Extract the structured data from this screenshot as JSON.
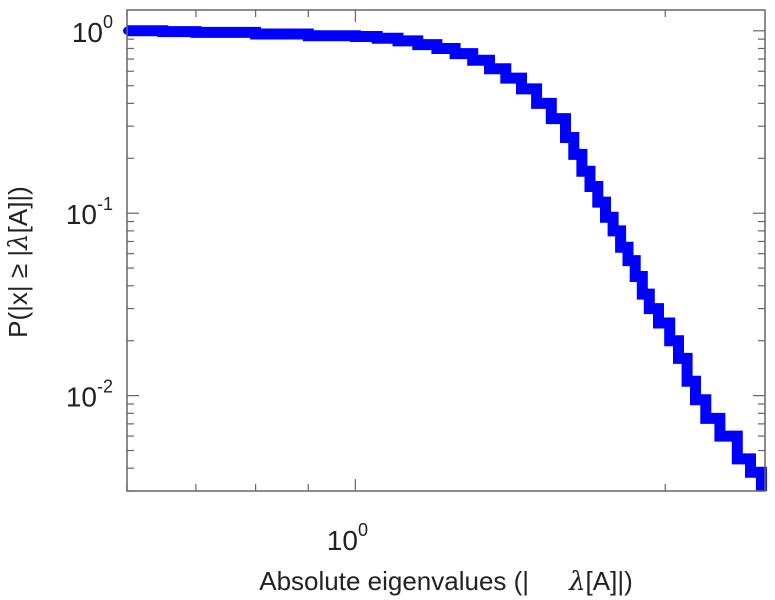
{
  "chart_data": {
    "type": "line",
    "title": "",
    "xlabel_parts": [
      "Absolute eigenvalues (|",
      "λ",
      "[A]|)"
    ],
    "ylabel_parts": [
      "P(|x|  ≥ |",
      "λ",
      "[A]|)"
    ],
    "x_scale": "log",
    "y_scale": "log",
    "xlim": [
      0.6,
      2.5
    ],
    "ylim": [
      0.003,
      1.3
    ],
    "grid": false,
    "legend": "none",
    "x_ticks": [
      {
        "value": 1,
        "base": "10",
        "exp": "0"
      }
    ],
    "y_ticks": [
      {
        "value": 1,
        "base": "10",
        "exp": "0"
      },
      {
        "value": 0.1,
        "base": "10",
        "exp": "-1"
      },
      {
        "value": 0.01,
        "base": "10",
        "exp": "-2"
      }
    ],
    "series": [
      {
        "color": "#0000ff",
        "style": "step",
        "x": [
          0.6,
          0.65,
          0.7,
          0.8,
          0.9,
          1.0,
          1.05,
          1.1,
          1.15,
          1.2,
          1.25,
          1.3,
          1.35,
          1.4,
          1.45,
          1.5,
          1.55,
          1.6,
          1.63,
          1.66,
          1.69,
          1.72,
          1.75,
          1.78,
          1.81,
          1.84,
          1.87,
          1.9,
          1.93,
          1.97,
          2.02,
          2.06,
          2.1,
          2.14,
          2.19,
          2.26,
          2.35,
          2.42,
          2.48
        ],
        "y": [
          1.0,
          0.99,
          0.98,
          0.96,
          0.94,
          0.93,
          0.91,
          0.88,
          0.84,
          0.8,
          0.75,
          0.69,
          0.62,
          0.55,
          0.48,
          0.4,
          0.33,
          0.26,
          0.21,
          0.17,
          0.14,
          0.115,
          0.095,
          0.08,
          0.065,
          0.055,
          0.045,
          0.036,
          0.03,
          0.025,
          0.02,
          0.016,
          0.012,
          0.0095,
          0.0075,
          0.006,
          0.0045,
          0.0038,
          0.0033
        ]
      }
    ]
  }
}
